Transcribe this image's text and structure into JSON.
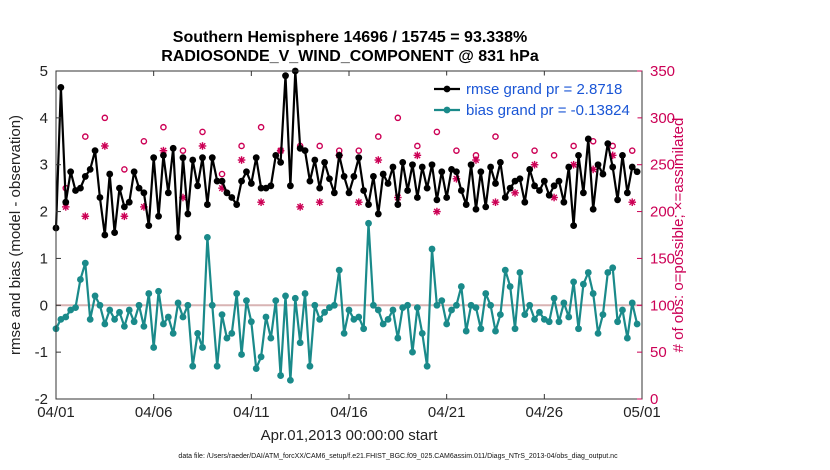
{
  "chart_data": {
    "type": "line",
    "title": "Southern Hemisphere 14696 / 15745 = 93.338%",
    "subtitle": "RADIOSONDE_V_WIND_COMPONENT @ 831 hPa",
    "xlabel": "Apr.01,2013 00:00:00 start",
    "ylabel": "rmse and bias (model - observation)",
    "y2label": "# of obs: o=possible; ×=assimilated",
    "footnote": "data file: /Users/raeder/DAI/ATM_forcXX/CAM6_setup/f.e21.FHIST_BGC.f09_025.CAM6assim.011/Diags_NTrS_2013-04/obs_diag_output.nc",
    "xlim": [
      0,
      30
    ],
    "ylim": [
      -2,
      5
    ],
    "y2lim": [
      0,
      350
    ],
    "x_ticks": [
      0,
      5,
      10,
      15,
      20,
      25,
      30
    ],
    "x_tick_labels": [
      "04/01",
      "04/06",
      "04/11",
      "04/16",
      "04/21",
      "04/26",
      "05/01"
    ],
    "y_ticks": [
      -2,
      -1,
      0,
      1,
      2,
      3,
      4,
      5
    ],
    "y_tick_labels": [
      "-2",
      "-1",
      "0",
      "1",
      "2",
      "3",
      "4",
      "5"
    ],
    "y2_ticks": [
      0,
      50,
      100,
      150,
      200,
      250,
      300,
      350
    ],
    "y2_tick_labels": [
      "0",
      "50",
      "100",
      "150",
      "200",
      "250",
      "300",
      "350"
    ],
    "zero_line": 0,
    "legend": {
      "position": "top-right",
      "entries": [
        "rmse grand pr = 2.8718",
        "bias grand pr = -0.13824"
      ]
    },
    "colors": {
      "rmse": "#000000",
      "bias": "#1a8a8a",
      "obs": "#cc0055",
      "zero_line": "#d8b4b4",
      "legend_text": "#1a56d6"
    },
    "series": [
      {
        "name": "rmse",
        "x": [
          0,
          0.25,
          0.5,
          0.75,
          1,
          1.25,
          1.5,
          1.75,
          2,
          2.25,
          2.5,
          2.75,
          3,
          3.25,
          3.5,
          3.75,
          4,
          4.25,
          4.5,
          4.75,
          5,
          5.25,
          5.5,
          5.75,
          6,
          6.25,
          6.5,
          6.75,
          7,
          7.25,
          7.5,
          7.75,
          8,
          8.25,
          8.5,
          8.75,
          9,
          9.25,
          9.5,
          9.75,
          10,
          10.25,
          10.5,
          10.75,
          11,
          11.25,
          11.5,
          11.75,
          12,
          12.25,
          12.5,
          12.75,
          13,
          13.25,
          13.5,
          13.75,
          14,
          14.25,
          14.5,
          14.75,
          15,
          15.25,
          15.5,
          15.75,
          16,
          16.25,
          16.5,
          16.75,
          17,
          17.25,
          17.5,
          17.75,
          18,
          18.25,
          18.5,
          18.75,
          19,
          19.25,
          19.5,
          19.75,
          20,
          20.25,
          20.5,
          20.75,
          21,
          21.25,
          21.5,
          21.75,
          22,
          22.25,
          22.5,
          22.75,
          23,
          23.25,
          23.5,
          23.75,
          24,
          24.25,
          24.5,
          24.75,
          25,
          25.25,
          25.5,
          25.75,
          26,
          26.25,
          26.5,
          26.75,
          27,
          27.25,
          27.5,
          27.75,
          28,
          28.25,
          28.5,
          28.75,
          29,
          29.25,
          29.5,
          29.75
        ],
        "values": [
          1.65,
          4.65,
          2.2,
          2.85,
          2.45,
          2.5,
          2.75,
          2.9,
          3.3,
          2.3,
          1.5,
          2.8,
          1.55,
          2.5,
          2.1,
          2.2,
          2.85,
          2.5,
          2.4,
          1.7,
          3.15,
          1.9,
          3.2,
          2.4,
          3.35,
          1.45,
          3.15,
          1.95,
          3.1,
          2.55,
          3.15,
          2.15,
          3.15,
          2.65,
          2.65,
          2.4,
          2.3,
          2.15,
          2.65,
          2.85,
          2.6,
          3.15,
          2.5,
          2.5,
          2.55,
          3.2,
          3.05,
          4.9,
          2.55,
          5.0,
          3.35,
          3.3,
          2.65,
          3.1,
          2.5,
          3.05,
          2.7,
          2.4,
          3.2,
          2.75,
          2.4,
          2.75,
          3.15,
          2.45,
          2.15,
          2.75,
          1.95,
          2.8,
          2.6,
          2.95,
          2.15,
          3.05,
          2.45,
          3.0,
          2.3,
          2.95,
          2.5,
          3.0,
          2.25,
          2.85,
          2.3,
          2.9,
          2.85,
          2.45,
          2.15,
          3.0,
          2.05,
          2.85,
          2.1,
          2.95,
          2.6,
          3.05,
          2.3,
          2.5,
          2.65,
          2.7,
          2.2,
          2.9,
          2.55,
          2.45,
          2.65,
          2.35,
          2.55,
          2.65,
          2.2,
          2.95,
          1.7,
          3.2,
          2.4,
          3.55,
          2.05,
          3.0,
          2.8,
          3.45,
          2.95,
          2.25,
          3.2,
          2.4,
          2.95,
          2.85
        ]
      },
      {
        "name": "bias",
        "x": [
          0,
          0.25,
          0.5,
          0.75,
          1,
          1.25,
          1.5,
          1.75,
          2,
          2.25,
          2.5,
          2.75,
          3,
          3.25,
          3.5,
          3.75,
          4,
          4.25,
          4.5,
          4.75,
          5,
          5.25,
          5.5,
          5.75,
          6,
          6.25,
          6.5,
          6.75,
          7,
          7.25,
          7.5,
          7.75,
          8,
          8.25,
          8.5,
          8.75,
          9,
          9.25,
          9.5,
          9.75,
          10,
          10.25,
          10.5,
          10.75,
          11,
          11.25,
          11.5,
          11.75,
          12,
          12.25,
          12.5,
          12.75,
          13,
          13.25,
          13.5,
          13.75,
          14,
          14.25,
          14.5,
          14.75,
          15,
          15.25,
          15.5,
          15.75,
          16,
          16.25,
          16.5,
          16.75,
          17,
          17.25,
          17.5,
          17.75,
          18,
          18.25,
          18.5,
          18.75,
          19,
          19.25,
          19.5,
          19.75,
          20,
          20.25,
          20.5,
          20.75,
          21,
          21.25,
          21.5,
          21.75,
          22,
          22.25,
          22.5,
          22.75,
          23,
          23.25,
          23.5,
          23.75,
          24,
          24.25,
          24.5,
          24.75,
          25,
          25.25,
          25.5,
          25.75,
          26,
          26.25,
          26.5,
          26.75,
          27,
          27.25,
          27.5,
          27.75,
          28,
          28.25,
          28.5,
          28.75,
          29,
          29.25,
          29.5,
          29.75
        ],
        "values": [
          -0.5,
          -0.3,
          -0.25,
          -0.1,
          -0.05,
          0.55,
          0.9,
          -0.3,
          0.2,
          0.0,
          -0.4,
          -0.1,
          -0.3,
          -0.15,
          -0.45,
          -0.1,
          -0.35,
          0.0,
          -0.45,
          0.25,
          -0.9,
          0.3,
          -0.4,
          -0.25,
          -0.6,
          0.05,
          -0.25,
          0.0,
          -1.3,
          -0.6,
          -0.9,
          1.45,
          0.0,
          -1.3,
          -0.2,
          -0.7,
          -0.6,
          0.25,
          -1.05,
          0.1,
          -0.35,
          -1.35,
          -1.1,
          -0.25,
          -0.7,
          0.1,
          -1.5,
          0.2,
          -1.6,
          0.15,
          -0.8,
          0.25,
          -1.3,
          0.0,
          -0.3,
          -0.15,
          -0.05,
          0.0,
          0.75,
          -0.6,
          -0.1,
          -0.3,
          -0.25,
          -0.5,
          1.75,
          0.0,
          -0.1,
          -0.4,
          -0.3,
          -0.1,
          -0.7,
          -0.05,
          0.0,
          -1.0,
          -0.05,
          -0.6,
          -1.3,
          1.2,
          0.0,
          0.1,
          -0.4,
          -0.1,
          0.0,
          0.4,
          -0.55,
          0.0,
          -0.05,
          -0.5,
          0.25,
          0.0,
          -0.55,
          -0.2,
          0.75,
          0.4,
          -0.5,
          0.7,
          -0.2,
          0.0,
          -0.3,
          -0.15,
          -0.3,
          -0.35,
          0.15,
          -0.35,
          0.05,
          -0.25,
          0.5,
          -0.5,
          0.45,
          0.7,
          0.25,
          -0.6,
          -0.2,
          0.7,
          0.8,
          -0.35,
          -0.1,
          -0.7,
          0.05,
          -0.4
        ]
      },
      {
        "name": "obs possible",
        "x": [
          0.5,
          1.5,
          2.5,
          3.5,
          4.5,
          5.5,
          6.5,
          7.5,
          8.5,
          9.5,
          10.5,
          11.5,
          12.5,
          13.5,
          14.5,
          15.5,
          16.5,
          17.5,
          18.5,
          19.5,
          20.5,
          21.5,
          22.5,
          23.5,
          24.5,
          25.5,
          26.5,
          27.5,
          28.5,
          29.5
        ],
        "values": [
          225,
          280,
          300,
          245,
          275,
          290,
          265,
          285,
          240,
          270,
          290,
          265,
          270,
          270,
          265,
          265,
          280,
          300,
          270,
          285,
          265,
          260,
          280,
          260,
          265,
          260,
          270,
          275,
          270,
          265
        ]
      },
      {
        "name": "obs assimilated",
        "x": [
          0.5,
          1.5,
          2.5,
          3.5,
          4.5,
          5.5,
          6.5,
          7.5,
          8.5,
          9.5,
          10.5,
          11.5,
          12.5,
          13.5,
          14.5,
          15.5,
          16.5,
          17.5,
          18.5,
          19.5,
          20.5,
          21.5,
          22.5,
          23.5,
          24.5,
          25.5,
          26.5,
          27.5,
          28.5,
          29.5
        ],
        "values": [
          205,
          195,
          270,
          195,
          205,
          265,
          215,
          270,
          225,
          255,
          210,
          265,
          205,
          210,
          260,
          210,
          255,
          215,
          260,
          200,
          235,
          255,
          210,
          220,
          250,
          215,
          250,
          245,
          260,
          210
        ]
      }
    ]
  }
}
